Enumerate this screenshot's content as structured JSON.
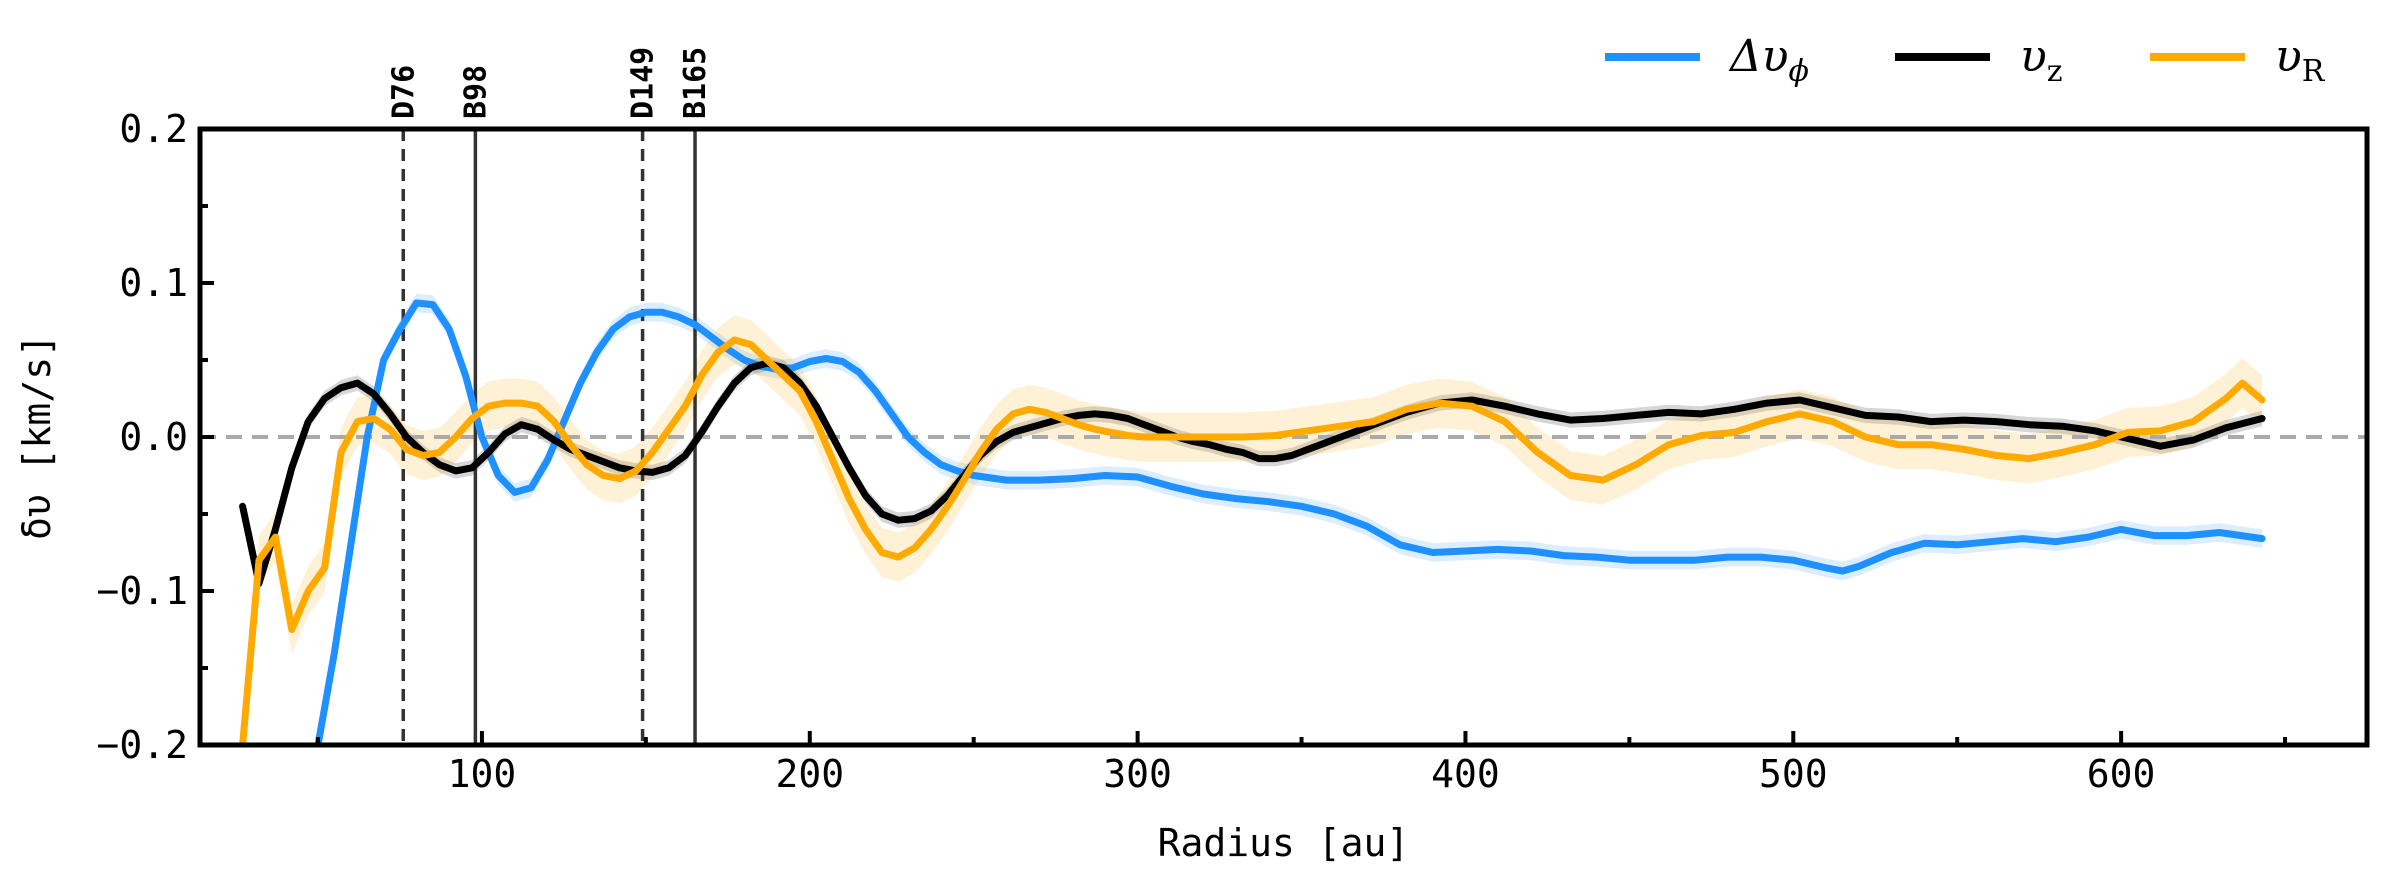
{
  "chart_data": {
    "type": "line",
    "xlabel": "Radius [au]",
    "ylabel": "δυ [km/s]",
    "xlim": [
      14,
      675
    ],
    "ylim": [
      -0.2,
      0.2
    ],
    "xticks": [
      100,
      200,
      300,
      400,
      500,
      600
    ],
    "xtick_labels": [
      "100",
      "200",
      "300",
      "400",
      "500",
      "600"
    ],
    "yticks": [
      -0.2,
      -0.1,
      0.0,
      0.1,
      0.2
    ],
    "ytick_labels": [
      "−0.2",
      "−0.1",
      "0.0",
      "0.1",
      "0.2"
    ],
    "reference_line": {
      "y": 0.0,
      "style": "dashed",
      "color": "#aaaaaa"
    },
    "vertical_lines": [
      {
        "x": 76,
        "label": "D76",
        "style": "dashed"
      },
      {
        "x": 98,
        "label": "B98",
        "style": "solid"
      },
      {
        "x": 149,
        "label": "D149",
        "style": "dashed"
      },
      {
        "x": 165,
        "label": "B165",
        "style": "solid"
      }
    ],
    "legend": {
      "placement": "top-right, above plot"
    },
    "series": [
      {
        "name": "Δυ",
        "name_sub": "ϕ",
        "color": "#1e90ff",
        "x": [
          50,
          55,
          60,
          65,
          70,
          75,
          80,
          85,
          90,
          95,
          100,
          105,
          110,
          115,
          120,
          125,
          130,
          135,
          140,
          145,
          150,
          155,
          160,
          165,
          170,
          175,
          180,
          185,
          190,
          195,
          200,
          205,
          210,
          215,
          220,
          225,
          230,
          235,
          240,
          245,
          250,
          260,
          270,
          280,
          290,
          300,
          310,
          320,
          330,
          340,
          350,
          360,
          370,
          380,
          390,
          400,
          410,
          420,
          430,
          440,
          450,
          460,
          470,
          480,
          490,
          500,
          510,
          515,
          520,
          530,
          540,
          550,
          560,
          570,
          580,
          590,
          600,
          610,
          620,
          630,
          643
        ],
        "y": [
          -0.2,
          -0.14,
          -0.07,
          0.0,
          0.05,
          0.07,
          0.087,
          0.086,
          0.07,
          0.04,
          0.0,
          -0.025,
          -0.036,
          -0.033,
          -0.015,
          0.01,
          0.035,
          0.055,
          0.07,
          0.078,
          0.081,
          0.081,
          0.078,
          0.073,
          0.065,
          0.057,
          0.05,
          0.046,
          0.044,
          0.045,
          0.049,
          0.051,
          0.049,
          0.042,
          0.03,
          0.015,
          0.0,
          -0.01,
          -0.018,
          -0.022,
          -0.025,
          -0.028,
          -0.028,
          -0.027,
          -0.025,
          -0.026,
          -0.032,
          -0.037,
          -0.04,
          -0.042,
          -0.045,
          -0.05,
          -0.058,
          -0.07,
          -0.075,
          -0.074,
          -0.073,
          -0.074,
          -0.077,
          -0.078,
          -0.08,
          -0.08,
          -0.08,
          -0.078,
          -0.078,
          -0.08,
          -0.085,
          -0.087,
          -0.084,
          -0.075,
          -0.069,
          -0.07,
          -0.068,
          -0.066,
          -0.068,
          -0.065,
          -0.06,
          -0.064,
          -0.064,
          -0.062,
          -0.066
        ],
        "band": 0.006
      },
      {
        "name": "υ",
        "name_sub": "z",
        "color": "#000000",
        "x": [
          27,
          32,
          37,
          42,
          47,
          52,
          57,
          62,
          67,
          72,
          77,
          82,
          87,
          92,
          97,
          102,
          107,
          112,
          117,
          122,
          127,
          132,
          137,
          142,
          147,
          152,
          157,
          162,
          167,
          172,
          177,
          182,
          187,
          192,
          197,
          202,
          207,
          212,
          217,
          222,
          227,
          232,
          237,
          242,
          247,
          252,
          257,
          262,
          267,
          272,
          277,
          282,
          287,
          292,
          297,
          302,
          307,
          312,
          317,
          322,
          327,
          332,
          337,
          342,
          347,
          352,
          357,
          362,
          372,
          382,
          392,
          402,
          412,
          422,
          432,
          442,
          452,
          462,
          472,
          482,
          492,
          502,
          512,
          522,
          532,
          542,
          552,
          562,
          572,
          582,
          592,
          602,
          612,
          622,
          632,
          643
        ],
        "y": [
          -0.045,
          -0.095,
          -0.06,
          -0.02,
          0.01,
          0.025,
          0.032,
          0.035,
          0.028,
          0.015,
          0.0,
          -0.01,
          -0.018,
          -0.022,
          -0.02,
          -0.01,
          0.002,
          0.008,
          0.005,
          -0.002,
          -0.008,
          -0.012,
          -0.016,
          -0.02,
          -0.022,
          -0.023,
          -0.02,
          -0.012,
          0.003,
          0.02,
          0.035,
          0.045,
          0.048,
          0.045,
          0.035,
          0.02,
          0.0,
          -0.02,
          -0.038,
          -0.05,
          -0.054,
          -0.053,
          -0.048,
          -0.038,
          -0.025,
          -0.012,
          -0.003,
          0.003,
          0.006,
          0.009,
          0.012,
          0.014,
          0.015,
          0.014,
          0.012,
          0.008,
          0.004,
          0.0,
          -0.003,
          -0.005,
          -0.008,
          -0.01,
          -0.014,
          -0.014,
          -0.012,
          -0.008,
          -0.004,
          0.0,
          0.008,
          0.016,
          0.022,
          0.024,
          0.02,
          0.015,
          0.011,
          0.012,
          0.014,
          0.016,
          0.015,
          0.018,
          0.022,
          0.024,
          0.019,
          0.014,
          0.013,
          0.01,
          0.011,
          0.01,
          0.008,
          0.007,
          0.004,
          -0.001,
          -0.006,
          -0.002,
          0.006,
          0.012
        ],
        "band": 0.005
      },
      {
        "name": "υ",
        "name_sub": "R",
        "color": "#ffaa00",
        "x": [
          27,
          32,
          37,
          42,
          47,
          52,
          57,
          62,
          67,
          72,
          77,
          82,
          87,
          92,
          97,
          102,
          107,
          112,
          117,
          122,
          127,
          132,
          137,
          142,
          147,
          152,
          157,
          162,
          167,
          172,
          177,
          182,
          187,
          192,
          197,
          202,
          207,
          212,
          217,
          222,
          227,
          232,
          237,
          242,
          247,
          252,
          257,
          262,
          267,
          272,
          277,
          282,
          287,
          292,
          297,
          302,
          307,
          312,
          322,
          332,
          342,
          352,
          362,
          372,
          382,
          392,
          402,
          412,
          422,
          432,
          442,
          452,
          462,
          472,
          482,
          492,
          502,
          512,
          522,
          532,
          542,
          552,
          562,
          572,
          582,
          592,
          602,
          612,
          622,
          632,
          637,
          643
        ],
        "y": [
          -0.2,
          -0.08,
          -0.065,
          -0.125,
          -0.1,
          -0.085,
          -0.01,
          0.01,
          0.012,
          0.005,
          -0.008,
          -0.012,
          -0.01,
          0.0,
          0.012,
          0.02,
          0.022,
          0.022,
          0.02,
          0.01,
          -0.005,
          -0.018,
          -0.025,
          -0.027,
          -0.022,
          -0.01,
          0.005,
          0.02,
          0.04,
          0.055,
          0.063,
          0.06,
          0.05,
          0.04,
          0.03,
          0.01,
          -0.015,
          -0.04,
          -0.06,
          -0.075,
          -0.078,
          -0.072,
          -0.06,
          -0.045,
          -0.028,
          -0.01,
          0.005,
          0.015,
          0.018,
          0.016,
          0.012,
          0.008,
          0.005,
          0.003,
          0.001,
          0.0,
          0.0,
          0.0,
          0.0,
          0.0,
          0.001,
          0.004,
          0.007,
          0.01,
          0.018,
          0.022,
          0.02,
          0.01,
          -0.01,
          -0.025,
          -0.028,
          -0.018,
          -0.005,
          0.001,
          0.003,
          0.01,
          0.015,
          0.01,
          0.0,
          -0.005,
          -0.005,
          -0.008,
          -0.012,
          -0.014,
          -0.01,
          -0.005,
          0.003,
          0.004,
          0.01,
          0.025,
          0.035,
          0.024
        ],
        "band": 0.016
      }
    ]
  }
}
